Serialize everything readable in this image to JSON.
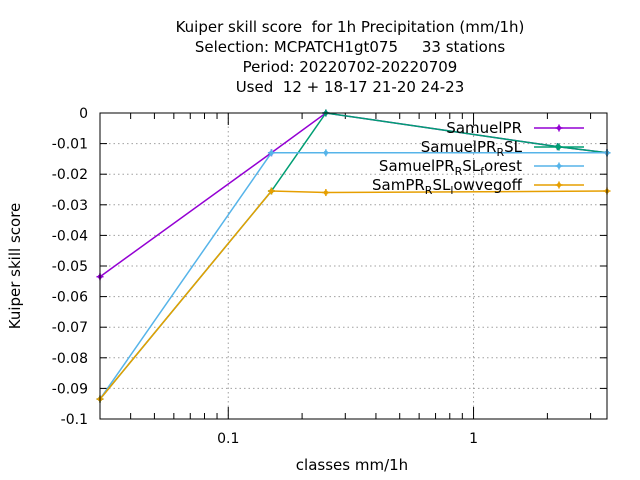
{
  "chart_data": {
    "type": "line",
    "title_lines": [
      "Kuiper skill score  for 1h Precipitation (mm/1h)",
      "Selection: MCPATCH1gt075     33 stations",
      "Period: 20220702-20220709",
      "Used  12 + 18-17 21-20 24-23"
    ],
    "xlabel": "classes mm/1h",
    "ylabel": "Kuiper skill score",
    "xscale": "log",
    "xlim": [
      0.03,
      3.5
    ],
    "ylim": [
      -0.1,
      0
    ],
    "xticks": [
      {
        "value": 0.1,
        "label": "0.1"
      },
      {
        "value": 1,
        "label": "1"
      }
    ],
    "yticks": [
      {
        "value": 0,
        "label": "0"
      },
      {
        "value": -0.01,
        "label": "-0.01"
      },
      {
        "value": -0.02,
        "label": "-0.02"
      },
      {
        "value": -0.03,
        "label": "-0.03"
      },
      {
        "value": -0.04,
        "label": "-0.04"
      },
      {
        "value": -0.05,
        "label": "-0.05"
      },
      {
        "value": -0.06,
        "label": "-0.06"
      },
      {
        "value": -0.07,
        "label": "-0.07"
      },
      {
        "value": -0.08,
        "label": "-0.08"
      },
      {
        "value": -0.09,
        "label": "-0.09"
      },
      {
        "value": -0.1,
        "label": "-0.1"
      }
    ],
    "grid": true,
    "legend_position": "top-right",
    "series": [
      {
        "name": "SamuelPR",
        "legend": {
          "base": "SamuelPR",
          "sub": "",
          "after": ""
        },
        "color": "#9400d3",
        "x": [
          0.03,
          0.15,
          0.25,
          2.2,
          3.5
        ],
        "y": [
          -0.0535,
          -0.013,
          0.0,
          -0.011,
          -0.013
        ]
      },
      {
        "name": "SamuelPR_RSL",
        "legend": {
          "base": "SamuelPR",
          "sub": "R",
          "after": "SL"
        },
        "color": "#009e73",
        "x": [
          0.03,
          0.15,
          0.25,
          2.2,
          3.5
        ],
        "y": [
          -0.0935,
          -0.0255,
          0.0,
          -0.011,
          -0.013
        ]
      },
      {
        "name": "SamuelPR_RSL_forest",
        "legend": {
          "base": "SamuelPR",
          "sub": "R",
          "after": "SL",
          "sub2": "f",
          "after2": "orest"
        },
        "color": "#56b4e9",
        "x": [
          0.03,
          0.15,
          0.25,
          3.5
        ],
        "y": [
          -0.0935,
          -0.013,
          -0.013,
          -0.013
        ]
      },
      {
        "name": "SamPR_RSL_lowvegoff",
        "legend": {
          "base": "SamPR",
          "sub": "R",
          "after": "SL",
          "sub2": "l",
          "after2": "owvegoff"
        },
        "color": "#e69f00",
        "x": [
          0.03,
          0.15,
          0.25,
          3.5
        ],
        "y": [
          -0.0935,
          -0.0255,
          -0.026,
          -0.0255
        ]
      }
    ]
  }
}
